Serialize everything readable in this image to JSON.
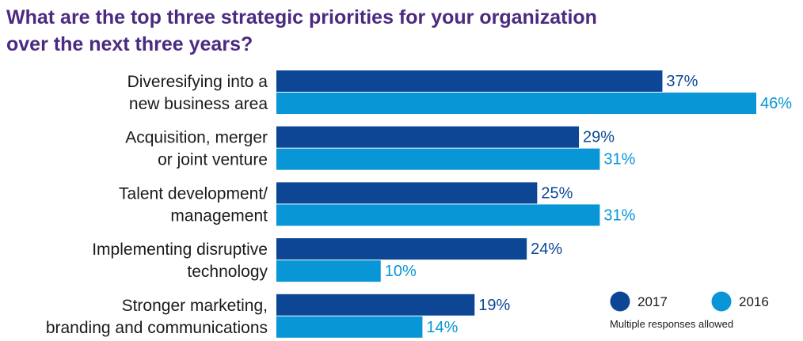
{
  "chart_data": {
    "type": "bar",
    "orientation": "horizontal",
    "title": "What are the top three strategic priorities for your organization over the next three years?",
    "categories": [
      [
        "Diveresifying into a",
        "new business area"
      ],
      [
        "Acquisition, merger",
        "or joint venture"
      ],
      [
        "Talent development/",
        "management"
      ],
      [
        "Implementing disruptive",
        "technology"
      ],
      [
        "Stronger marketing,",
        "branding and communications"
      ]
    ],
    "series": [
      {
        "name": "2017",
        "values": [
          37,
          29,
          25,
          24,
          19
        ],
        "labels": [
          "37%",
          "29%",
          "25%",
          "24%",
          "19%"
        ],
        "color": "#0c4694"
      },
      {
        "name": "2016",
        "values": [
          46,
          31,
          31,
          10,
          14
        ],
        "labels": [
          "46%",
          "31%",
          "31%",
          "10%",
          "14%"
        ],
        "color": "#0896d6"
      }
    ],
    "xlim": [
      0,
      46
    ],
    "grid": false,
    "legend_position": "bottom-right",
    "note": "Multiple responses allowed"
  }
}
